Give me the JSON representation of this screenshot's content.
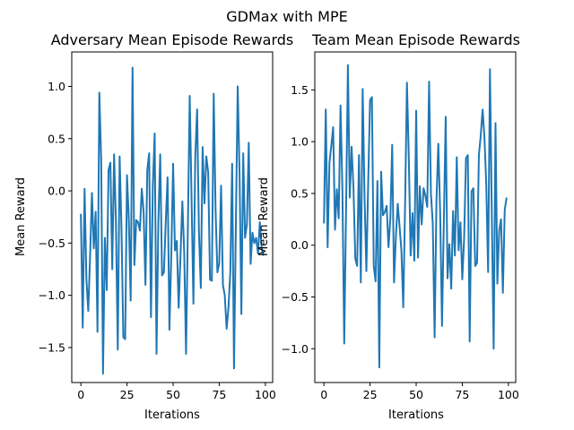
{
  "figure": {
    "suptitle": "GDMax with MPE"
  },
  "style": {
    "line_color": "#1f77b4",
    "background": "#ffffff"
  },
  "chart_data": [
    {
      "type": "line",
      "title": "Adversary Mean Episode Rewards",
      "xlabel": "Iterations",
      "ylabel": "Mean Reward",
      "xlim": [
        -4.95,
        103.95
      ],
      "ylim": [
        -1.835,
        1.33
      ],
      "xticks": [
        0,
        25,
        50,
        75,
        100
      ],
      "xtick_labels": [
        "0",
        "25",
        "50",
        "75",
        "100"
      ],
      "yticks": [
        -1.5,
        -1.0,
        -0.5,
        0.0,
        0.5,
        1.0
      ],
      "ytick_labels": [
        "−1.5",
        "−1.0",
        "−0.5",
        "0.0",
        "0.5",
        "1.0"
      ],
      "grid": false,
      "series": [
        {
          "color": "#1f77b4",
          "x": [
            0,
            1,
            2,
            3,
            4,
            5,
            6,
            7,
            8,
            9,
            10,
            11,
            12,
            13,
            14,
            15,
            16,
            17,
            18,
            19,
            20,
            21,
            22,
            23,
            24,
            25,
            26,
            27,
            28,
            29,
            30,
            31,
            32,
            33,
            34,
            35,
            36,
            37,
            38,
            39,
            40,
            41,
            42,
            43,
            44,
            45,
            46,
            47,
            48,
            49,
            50,
            51,
            52,
            53,
            54,
            55,
            56,
            57,
            58,
            59,
            60,
            61,
            62,
            63,
            64,
            65,
            66,
            67,
            68,
            69,
            70,
            71,
            72,
            73,
            74,
            75,
            76,
            77,
            78,
            79,
            80,
            81,
            82,
            83,
            84,
            85,
            86,
            87,
            88,
            89,
            90,
            91,
            92,
            93,
            94,
            95,
            96,
            97,
            98,
            99
          ],
          "y": [
            -0.22,
            -1.31,
            0.02,
            -0.85,
            -1.15,
            -0.62,
            -0.02,
            -0.55,
            -0.2,
            -1.35,
            0.94,
            0.3,
            -1.75,
            -0.45,
            -0.95,
            0.2,
            0.27,
            -0.75,
            0.35,
            -0.3,
            -1.52,
            0.33,
            -0.35,
            -1.4,
            -1.42,
            0.15,
            -0.28,
            -1.05,
            1.18,
            -0.71,
            -0.28,
            -0.3,
            -0.38,
            0.02,
            -0.2,
            -0.9,
            0.2,
            0.36,
            -1.21,
            0.05,
            0.55,
            -1.56,
            -0.3,
            0.35,
            -0.81,
            -0.78,
            -0.3,
            0.13,
            -1.33,
            -0.62,
            0.26,
            -0.57,
            -0.48,
            -1.12,
            -0.62,
            -0.1,
            -0.58,
            -1.56,
            -0.35,
            0.91,
            -0.08,
            -1.08,
            0.33,
            0.78,
            -0.4,
            -0.93,
            0.42,
            -0.12,
            0.33,
            0.18,
            -0.85,
            -0.86,
            0.93,
            -0.18,
            -0.78,
            -0.69,
            0.05,
            -0.9,
            -1.0,
            -1.32,
            -1.12,
            -0.78,
            0.26,
            -1.7,
            -0.35,
            1.0,
            0.18,
            -1.18,
            0.36,
            -0.45,
            -0.32,
            0.46,
            -0.7,
            -0.4,
            -0.5,
            -0.45,
            -0.6,
            -0.3,
            -0.55,
            -0.62
          ]
        }
      ]
    },
    {
      "type": "line",
      "title": "Team Mean Episode Rewards",
      "xlabel": "Iterations",
      "ylabel": "Mean Reward",
      "xlim": [
        -4.95,
        103.95
      ],
      "ylim": [
        -1.3265,
        1.8665
      ],
      "xticks": [
        0,
        25,
        50,
        75,
        100
      ],
      "xtick_labels": [
        "0",
        "25",
        "50",
        "75",
        "100"
      ],
      "yticks": [
        -1.0,
        -0.5,
        0.0,
        0.5,
        1.0,
        1.5
      ],
      "ytick_labels": [
        "−1.0",
        "−0.5",
        "0.0",
        "0.5",
        "1.0",
        "1.5"
      ],
      "grid": false,
      "series": [
        {
          "color": "#1f77b4",
          "x": [
            0,
            1,
            2,
            3,
            4,
            5,
            6,
            7,
            8,
            9,
            10,
            11,
            12,
            13,
            14,
            15,
            16,
            17,
            18,
            19,
            20,
            21,
            22,
            23,
            24,
            25,
            26,
            27,
            28,
            29,
            30,
            31,
            32,
            33,
            34,
            35,
            36,
            37,
            38,
            39,
            40,
            41,
            42,
            43,
            44,
            45,
            46,
            47,
            48,
            49,
            50,
            51,
            52,
            53,
            54,
            55,
            56,
            57,
            58,
            59,
            60,
            61,
            62,
            63,
            64,
            65,
            66,
            67,
            68,
            69,
            70,
            71,
            72,
            73,
            74,
            75,
            76,
            77,
            78,
            79,
            80,
            81,
            82,
            83,
            84,
            85,
            86,
            87,
            88,
            89,
            90,
            91,
            92,
            93,
            94,
            95,
            96,
            97,
            98,
            99
          ],
          "y": [
            0.21,
            1.31,
            -0.02,
            0.8,
            0.96,
            1.14,
            0.15,
            0.54,
            0.26,
            1.35,
            0.55,
            -0.95,
            0.35,
            1.74,
            0.46,
            0.95,
            0.56,
            -0.13,
            -0.2,
            0.87,
            -0.36,
            1.51,
            0.48,
            -0.25,
            0.61,
            1.4,
            1.43,
            -0.2,
            -0.35,
            0.62,
            -1.18,
            0.71,
            0.29,
            0.32,
            0.38,
            -0.02,
            0.26,
            0.97,
            -0.36,
            0.08,
            0.4,
            0.18,
            -0.05,
            -0.6,
            0.4,
            1.57,
            0.85,
            -0.1,
            0.31,
            -0.15,
            1.3,
            -0.12,
            0.57,
            0.2,
            0.55,
            0.48,
            0.37,
            1.58,
            0.5,
            0.21,
            -0.89,
            0.43,
            0.98,
            0.32,
            -0.78,
            0.23,
            1.24,
            -0.32,
            0.01,
            -0.42,
            0.33,
            -0.1,
            0.85,
            -0.05,
            0.22,
            -0.33,
            0.07,
            0.84,
            0.87,
            -0.93,
            0.52,
            0.55,
            -0.2,
            -0.17,
            0.87,
            1.06,
            1.31,
            1.05,
            0.58,
            -0.26,
            1.7,
            0.3,
            -1.0,
            1.18,
            -0.37,
            0.14,
            0.25,
            -0.46,
            0.34,
            0.46
          ]
        }
      ]
    }
  ]
}
